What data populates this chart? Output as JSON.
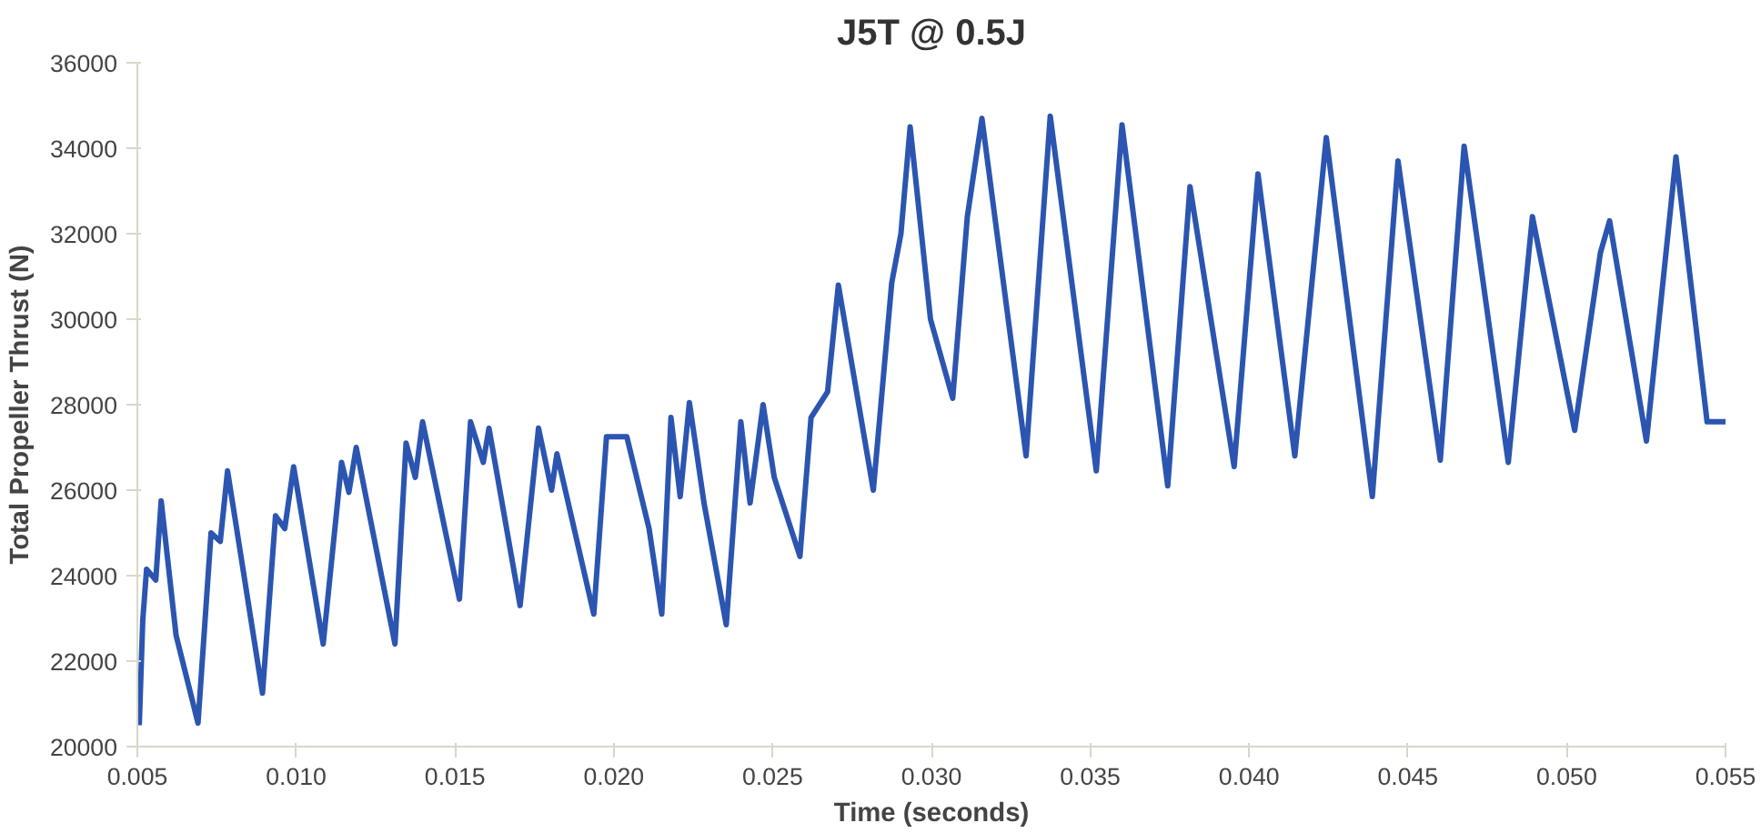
{
  "chart_data": {
    "type": "line",
    "title": "J5T @ 0.5J",
    "xlabel": "Time (seconds)",
    "ylabel": "Total Propeller Thrust (N)",
    "xlim": [
      0.005,
      0.055
    ],
    "ylim": [
      20000,
      36000
    ],
    "xticks": [
      0.005,
      {
        "value": 0.01,
        "label": "0.010"
      },
      0.015,
      {
        "value": 0.02,
        "label": "0.020"
      },
      0.025,
      {
        "value": 0.03,
        "label": "0.030"
      },
      0.035,
      {
        "value": 0.04,
        "label": "0.040"
      },
      0.045,
      {
        "value": 0.05,
        "label": "0.050"
      },
      0.055
    ],
    "yticks": [
      20000,
      22000,
      24000,
      26000,
      28000,
      30000,
      32000,
      34000,
      36000
    ],
    "grid": false,
    "marker": "none",
    "line_style": "solid",
    "series": [
      {
        "color": "#2b55b0",
        "x": [
          0.00506,
          0.00517,
          0.00529,
          0.00558,
          0.00575,
          0.00622,
          0.00691,
          0.00732,
          0.00761,
          0.00784,
          0.00894,
          0.00935,
          0.00964,
          0.00992,
          0.01085,
          0.01143,
          0.01166,
          0.01189,
          0.01311,
          0.01346,
          0.01375,
          0.01398,
          0.01514,
          0.01549,
          0.01589,
          0.01607,
          0.01705,
          0.01763,
          0.01804,
          0.01821,
          0.01937,
          0.01977,
          0.02041,
          0.02111,
          0.02151,
          0.0218,
          0.02209,
          0.02238,
          0.02284,
          0.02354,
          0.024,
          0.02429,
          0.0247,
          0.02505,
          0.02586,
          0.02621,
          0.02673,
          0.02707,
          0.02817,
          0.02875,
          0.02904,
          0.02933,
          0.02997,
          0.03067,
          0.03113,
          0.03159,
          0.03298,
          0.03374,
          0.03519,
          0.036,
          0.03744,
          0.03814,
          0.03953,
          0.04028,
          0.04144,
          0.04243,
          0.04388,
          0.04469,
          0.04602,
          0.04677,
          0.04816,
          0.04892,
          0.05025,
          0.05106,
          0.05135,
          0.05251,
          0.05344,
          0.05442,
          0.055
        ],
        "values": [
          20500,
          22950,
          24150,
          23900,
          25750,
          22600,
          20550,
          25000,
          24800,
          26450,
          21250,
          25400,
          25100,
          26550,
          22400,
          26650,
          25950,
          27000,
          22400,
          27100,
          26300,
          27600,
          23450,
          27600,
          26650,
          27450,
          23300,
          27450,
          26000,
          26850,
          23100,
          27250,
          27250,
          25100,
          23100,
          27700,
          25850,
          28050,
          25700,
          22850,
          27600,
          25700,
          28000,
          26300,
          24450,
          27700,
          28300,
          30800,
          26000,
          30850,
          32000,
          34500,
          30000,
          28150,
          32400,
          34700,
          26800,
          34750,
          26450,
          34550,
          26100,
          33100,
          26550,
          33400,
          26800,
          34250,
          25850,
          33700,
          26700,
          34050,
          26650,
          32400,
          27400,
          31550,
          32300,
          27150,
          33800,
          27600,
          27600
        ]
      }
    ]
  }
}
